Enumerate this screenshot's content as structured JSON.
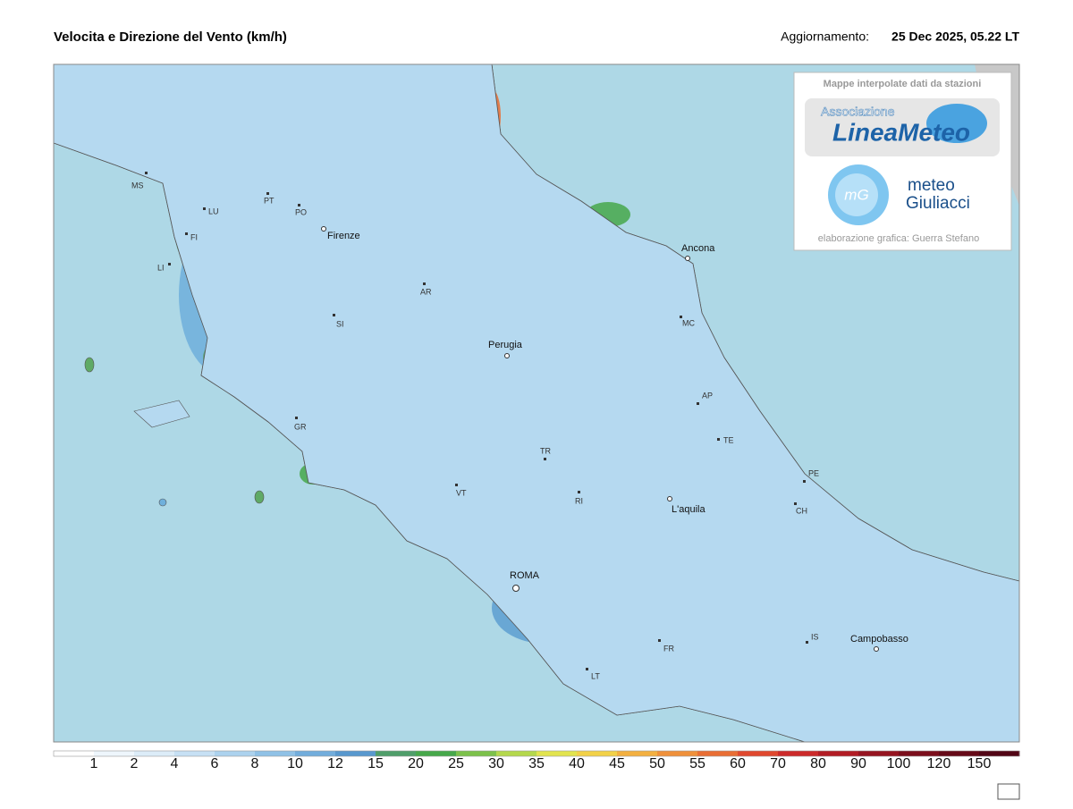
{
  "header": {
    "title": "Velocita e Direzione del Vento  (km/h)",
    "update_label": "Aggiornamento:",
    "update_value": "25 Dec 2025, 05.22 LT"
  },
  "logo": {
    "caption": "Mappe interpolate dati da stazioni",
    "assoc": "Associazione",
    "name": "LineaMeteo",
    "mg": "mG",
    "meteo": "meteo",
    "giuliacci": "Giuliacci",
    "credit": "elaborazione grafica: Guerra Stefano"
  },
  "cities": [
    "MS",
    "LU",
    "PT",
    "PO",
    "Firenze",
    "FI",
    "LI",
    "AR",
    "SI",
    "Perugia",
    "MC",
    "Ancona",
    "AP",
    "TE",
    "GR",
    "TR",
    "PE",
    "CH",
    "VT",
    "RI",
    "L'aquila",
    "ROMA",
    "IS",
    "Campobasso",
    "FR",
    "LT"
  ],
  "colorbar": {
    "labels": [
      1,
      2,
      4,
      6,
      8,
      10,
      12,
      15,
      20,
      25,
      30,
      35,
      40,
      45,
      50,
      55,
      60,
      70,
      80,
      90,
      100,
      120,
      150
    ],
    "colors": [
      "#ffffff",
      "#eef6fc",
      "#dcecf8",
      "#c6e0f4",
      "#acd2ee",
      "#8fc1e6",
      "#72addc",
      "#5898ce",
      "#4f9e6a",
      "#46a84a",
      "#7cc14a",
      "#b4d84c",
      "#e2e44e",
      "#f2d148",
      "#f3b040",
      "#ef903a",
      "#e96e34",
      "#e0482e",
      "#cc2a2a",
      "#b21c24",
      "#961420",
      "#7c0e1c",
      "#660a18",
      "#520616"
    ]
  }
}
